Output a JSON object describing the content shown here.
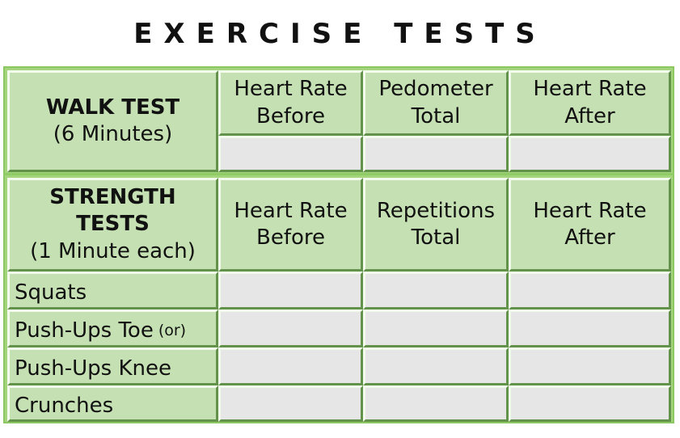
{
  "title": "EXERCISE TESTS",
  "walk": {
    "name": "WALK TEST",
    "duration": "(6 Minutes)",
    "columns": [
      {
        "line1": "Heart Rate",
        "line2": "Before"
      },
      {
        "line1": "Pedometer",
        "line2": "Total"
      },
      {
        "line1": "Heart Rate",
        "line2": "After"
      }
    ]
  },
  "strength": {
    "name": "STRENGTH TESTS",
    "duration": "(1 Minute each)",
    "columns": [
      {
        "line1": "Heart Rate",
        "line2": "Before"
      },
      {
        "line1": "Repetitions",
        "line2": "Total"
      },
      {
        "line1": "Heart Rate",
        "line2": "After"
      }
    ],
    "rows": [
      {
        "label": "Squats",
        "note": ""
      },
      {
        "label": "Push-Ups Toe",
        "note": "(or)"
      },
      {
        "label": "Push-Ups Knee",
        "note": ""
      },
      {
        "label": "Crunches",
        "note": ""
      }
    ]
  }
}
